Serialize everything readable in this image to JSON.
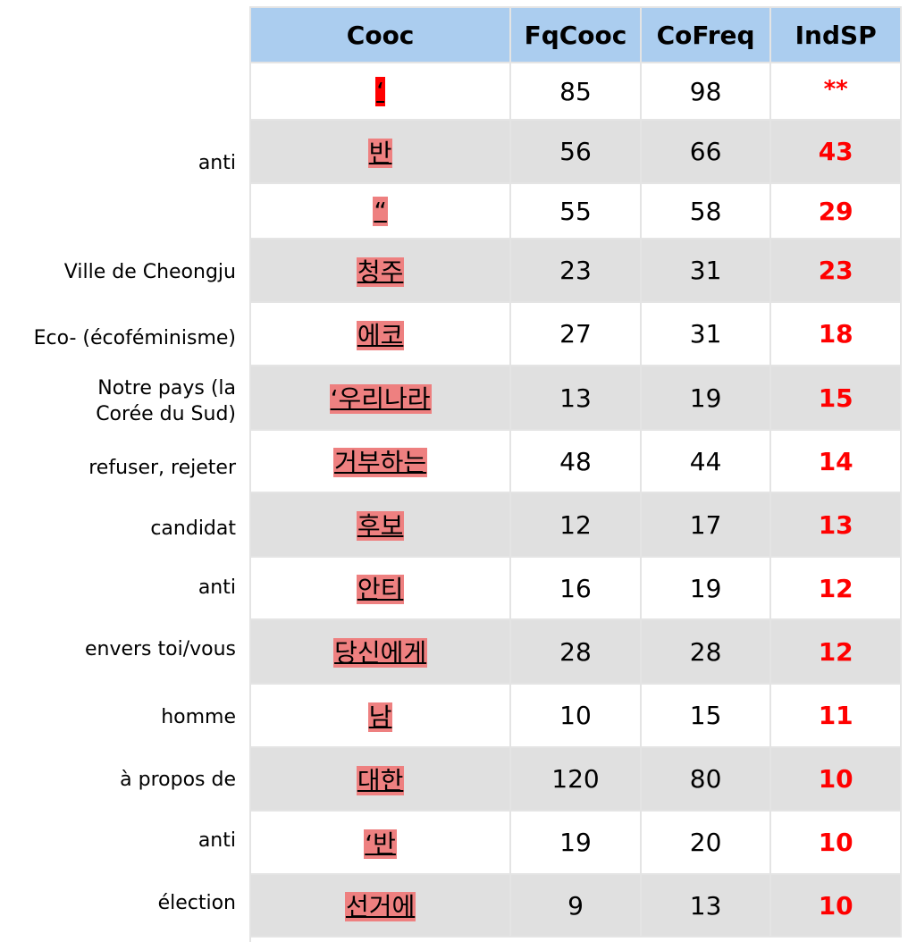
{
  "headers": [
    "Cooc",
    "FqCooc",
    "CoFreq",
    "IndSP"
  ],
  "rows": [
    {
      "label": "",
      "cooc": "‘",
      "fqcooc": "85",
      "cofreq": "98",
      "indsp": "**"
    },
    {
      "label": "anti",
      "cooc": "반",
      "fqcooc": "56",
      "cofreq": "66",
      "indsp": "43"
    },
    {
      "label": "",
      "cooc": "“",
      "fqcooc": "55",
      "cofreq": "58",
      "indsp": "29"
    },
    {
      "label": "Ville de Cheongju",
      "cooc": "청주",
      "fqcooc": "23",
      "cofreq": "31",
      "indsp": "23"
    },
    {
      "label": "Eco- (écoféminisme)",
      "cooc": "에코",
      "fqcooc": "27",
      "cofreq": "31",
      "indsp": "18"
    },
    {
      "label": "Notre pays (la Corée du Sud)",
      "cooc": "‘우리나라",
      "fqcooc": "13",
      "cofreq": "19",
      "indsp": "15"
    },
    {
      "label": "refuser, rejeter",
      "cooc": "거부하는",
      "fqcooc": "48",
      "cofreq": "44",
      "indsp": "14"
    },
    {
      "label": "candidat",
      "cooc": "후보",
      "fqcooc": "12",
      "cofreq": "17",
      "indsp": "13"
    },
    {
      "label": "anti",
      "cooc": "안티",
      "fqcooc": "16",
      "cofreq": "19",
      "indsp": "12"
    },
    {
      "label": "envers toi/vous",
      "cooc": "당신에게",
      "fqcooc": "28",
      "cofreq": "28",
      "indsp": "12"
    },
    {
      "label": "homme",
      "cooc": "남",
      "fqcooc": "10",
      "cofreq": "15",
      "indsp": "11"
    },
    {
      "label": "à propos de",
      "cooc": "대한",
      "fqcooc": "120",
      "cofreq": "80",
      "indsp": "10"
    },
    {
      "label": "anti",
      "cooc": "‘반",
      "fqcooc": "19",
      "cofreq": "20",
      "indsp": "10"
    },
    {
      "label": "élection",
      "cooc": "선거에",
      "fqcooc": "9",
      "cofreq": "13",
      "indsp": "10"
    }
  ],
  "colors": {
    "header_bg": "#abcdef",
    "stripe": "#e0e0e0",
    "highlight": "#ee8080",
    "highlight_first": "#ff0000",
    "indsp_text": "#ff0000"
  }
}
